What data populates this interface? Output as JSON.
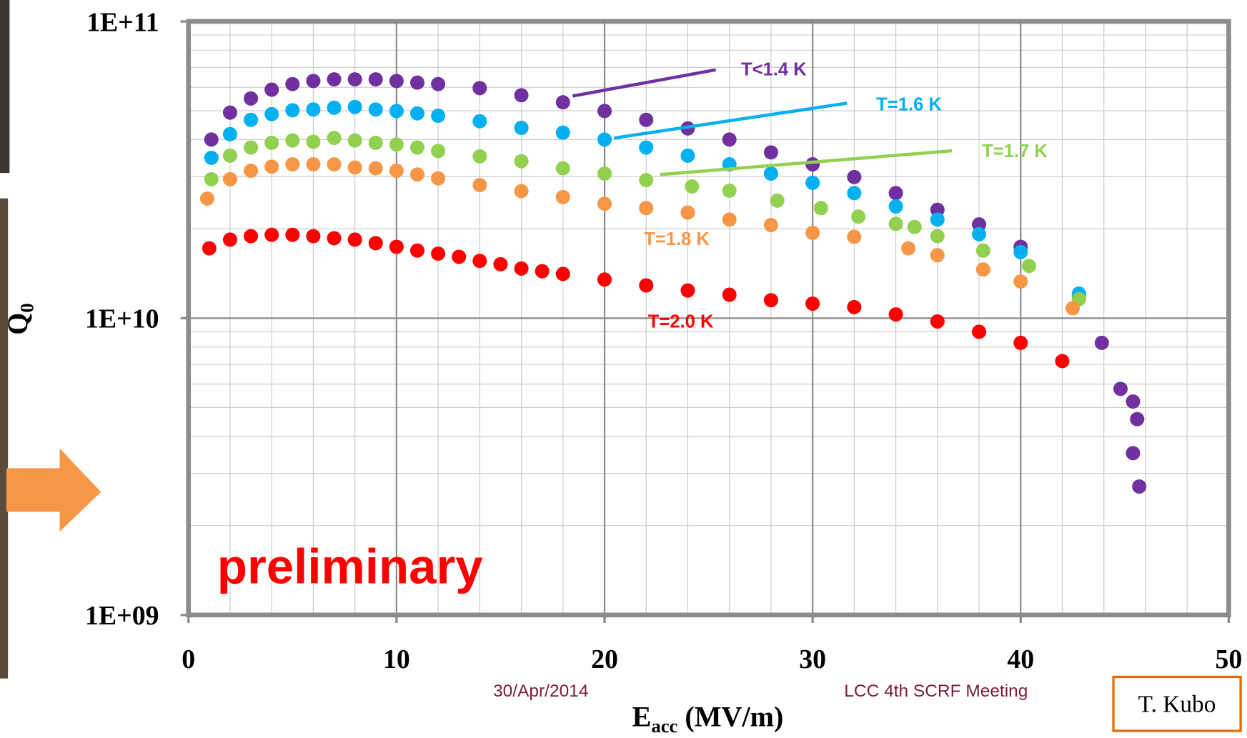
{
  "chart_data": {
    "type": "scatter",
    "log_y": true,
    "grid": true,
    "xlabel": {
      "text": "E",
      "sub": "acc",
      "rest": " (MV/m)"
    },
    "ylabel": {
      "text": "Q",
      "sub": "0"
    },
    "xlim": [
      0,
      50
    ],
    "xticks": [
      0,
      10,
      20,
      30,
      40,
      50
    ],
    "ylim": [
      1000000000.0,
      100000000000.0
    ],
    "yticks": [
      {
        "value": 1000000000.0,
        "label": "1E+09"
      },
      {
        "value": 10000000000.0,
        "label": "1E+10"
      },
      {
        "value": 100000000000.0,
        "label": "1E+11"
      }
    ],
    "series": [
      {
        "name": "T<1.4 K",
        "color": "#7030a0",
        "x": [
          1.1,
          2,
          3,
          4,
          5,
          6,
          7,
          8,
          9,
          10,
          11,
          12,
          14,
          16,
          18,
          20,
          22,
          24,
          26,
          28,
          30,
          32,
          34,
          36,
          38,
          40,
          42.8,
          43.9,
          44.8,
          45.4,
          45.6,
          45.4,
          45.7
        ],
        "values": [
          40000000000.0,
          49300000000.0,
          55000000000.0,
          58900000000.0,
          61500000000.0,
          63000000000.0,
          63800000000.0,
          63800000000.0,
          63800000000.0,
          63000000000.0,
          62200000000.0,
          61500000000.0,
          59600000000.0,
          56400000000.0,
          53400000000.0,
          49900000000.0,
          46600000000.0,
          43600000000.0,
          40000000000.0,
          36200000000.0,
          33000000000.0,
          29900000000.0,
          26400000000.0,
          23200000000.0,
          20700000000.0,
          17400000000.0,
          11900000000.0,
          8260000000.0,
          5780000000.0,
          5240000000.0,
          4570000000.0,
          3510000000.0,
          2710000000.0
        ]
      },
      {
        "name": "T=1.6 K",
        "color": "#00b0f0",
        "x": [
          1.1,
          2,
          3,
          4,
          5,
          6,
          7,
          8,
          9,
          10,
          11,
          12,
          14,
          16,
          18,
          20,
          22,
          24,
          26,
          28,
          30,
          32,
          34,
          36,
          38,
          40,
          42.8
        ],
        "values": [
          34700000000.0,
          41700000000.0,
          46600000000.0,
          48700000000.0,
          50200000000.0,
          50500000000.0,
          51200000000.0,
          51500000000.0,
          50500000000.0,
          49900000000.0,
          49000000000.0,
          48100000000.0,
          46100000000.0,
          43800000000.0,
          42200000000.0,
          40000000000.0,
          37600000000.0,
          35300000000.0,
          33000000000.0,
          30700000000.0,
          28600000000.0,
          26400000000.0,
          23800000000.0,
          21500000000.0,
          19200000000.0,
          16700000000.0,
          12100000000.0
        ]
      },
      {
        "name": "T=1.7 K",
        "color": "#92d050",
        "x": [
          1.1,
          2,
          3,
          4,
          5,
          6,
          7,
          8,
          9,
          10,
          11,
          12,
          14,
          16,
          18,
          20,
          22,
          24.2,
          26,
          28.3,
          30.4,
          32.2,
          34,
          34.9,
          36,
          38.2,
          40.4,
          42.8
        ],
        "values": [
          29400000000.0,
          35300000000.0,
          37600000000.0,
          39000000000.0,
          39700000000.0,
          39300000000.0,
          40500000000.0,
          39700000000.0,
          39000000000.0,
          38500000000.0,
          37600000000.0,
          36600000000.0,
          35100000000.0,
          33800000000.0,
          32000000000.0,
          30700000000.0,
          29200000000.0,
          27800000000.0,
          26900000000.0,
          24900000000.0,
          23500000000.0,
          22000000000.0,
          20800000000.0,
          20300000000.0,
          18900000000.0,
          16900000000.0,
          15000000000.0,
          11600000000.0
        ]
      },
      {
        "name": "T=1.8 K",
        "color": "#f79646",
        "x": [
          0.9,
          2,
          3,
          4,
          5,
          6,
          7,
          8,
          9,
          10,
          11,
          12,
          14,
          16,
          18,
          20,
          22,
          24,
          26,
          28,
          30,
          32,
          34.6,
          36,
          38.2,
          40,
          42.5
        ],
        "values": [
          25300000000.0,
          29400000000.0,
          31400000000.0,
          32400000000.0,
          33000000000.0,
          33000000000.0,
          33000000000.0,
          32200000000.0,
          32000000000.0,
          31400000000.0,
          30500000000.0,
          29600000000.0,
          28100000000.0,
          26800000000.0,
          25600000000.0,
          24300000000.0,
          23500000000.0,
          22700000000.0,
          21500000000.0,
          20600000000.0,
          19400000000.0,
          18800000000.0,
          17200000000.0,
          16300000000.0,
          14600000000.0,
          13300000000.0,
          10800000000.0
        ]
      },
      {
        "name": "T=2.0 K",
        "color": "#ff0000",
        "x": [
          1,
          2,
          3,
          4,
          5,
          6,
          7,
          8,
          9,
          10,
          11,
          12,
          13,
          14,
          15,
          16,
          17,
          18,
          20,
          22,
          24,
          26,
          28,
          30,
          32,
          34,
          36,
          38,
          40,
          42
        ],
        "values": [
          17200000000.0,
          18400000000.0,
          18900000000.0,
          19100000000.0,
          19100000000.0,
          18900000000.0,
          18600000000.0,
          18400000000.0,
          17900000000.0,
          17400000000.0,
          16900000000.0,
          16500000000.0,
          16100000000.0,
          15600000000.0,
          15200000000.0,
          14700000000.0,
          14400000000.0,
          14100000000.0,
          13500000000.0,
          12900000000.0,
          12400000000.0,
          12000000000.0,
          11500000000.0,
          11200000000.0,
          10900000000.0,
          10300000000.0,
          9750000000.0,
          9000000000.0,
          8260000000.0,
          7170000000.0
        ]
      }
    ],
    "annotation": "preliminary",
    "footer_date": "30/Apr/2014",
    "footer_meeting": "LCC 4th SCRF Meeting",
    "author": "T. Kubo"
  }
}
